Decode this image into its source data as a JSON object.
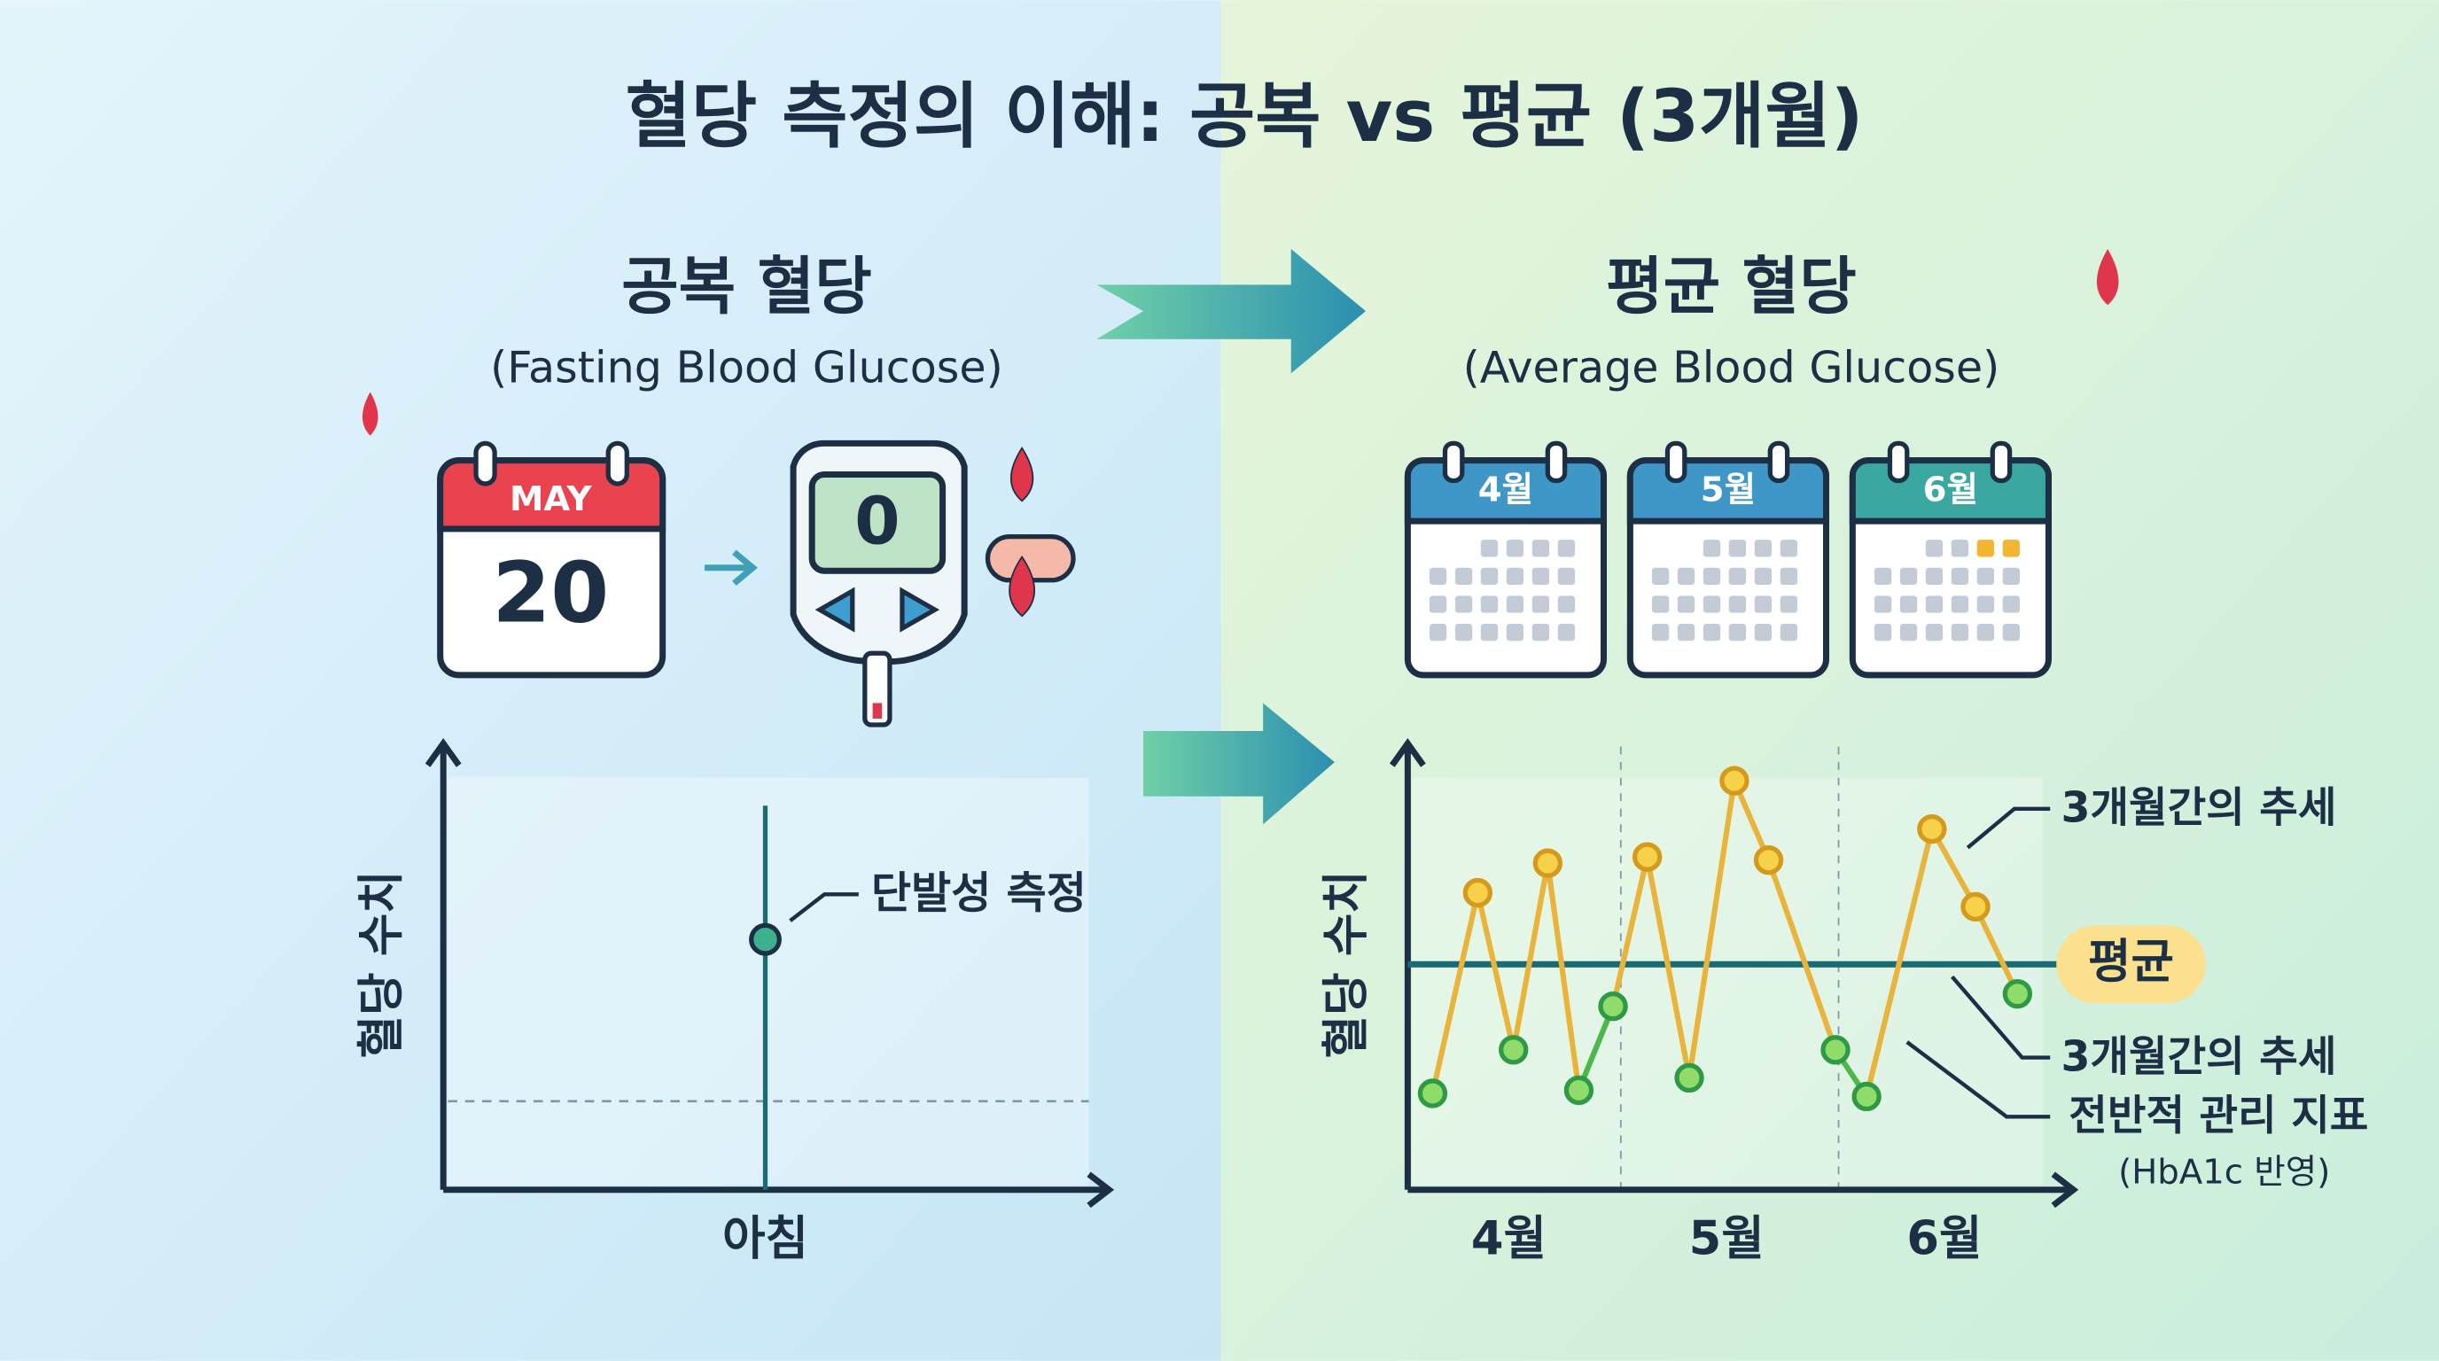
{
  "title": "혈당 측정의 이해: 공복 vs 평균 (3개월)",
  "left_panel": {
    "heading": "공복 혈당",
    "subheading": "(Fasting Blood Glucose)",
    "calendar": {
      "month": "MAY",
      "day": "20"
    },
    "meter_reading": "0",
    "chart": {
      "y_label": "혈당 수치",
      "annotation": "단발성 측정",
      "x_label": "아침"
    }
  },
  "right_panel": {
    "heading": "평균 혈당",
    "subheading": "(Average Blood Glucose)",
    "calendars": [
      "4월",
      "5월",
      "6월"
    ],
    "chart": {
      "y_label": "혈당 수치",
      "x_labels": [
        "4월",
        "5월",
        "6월"
      ],
      "annotations": {
        "trend_top": "3개월간의 추세",
        "average": "평균",
        "trend": "3개월간의 추세",
        "indicator": "전반적 관리 지표",
        "note": "(HbA1c 반영)"
      }
    }
  }
}
